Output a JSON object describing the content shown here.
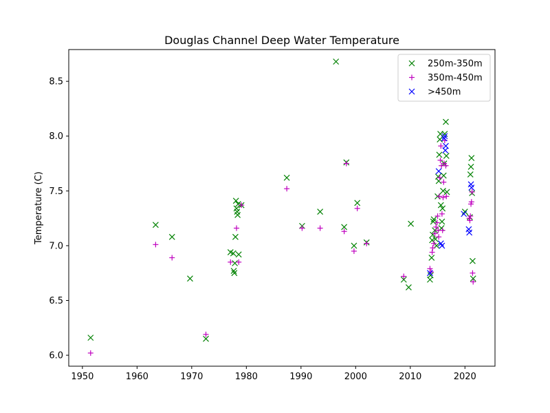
{
  "chart_data": {
    "type": "scatter",
    "title": "Douglas Channel Deep Water Temperature",
    "xlabel": "",
    "ylabel": "Temperature (C)",
    "xlim": [
      1947.5,
      2025.5
    ],
    "ylim": [
      5.9,
      8.79
    ],
    "xticks": [
      1950,
      1960,
      1970,
      1980,
      1990,
      2000,
      2010,
      2020
    ],
    "yticks": [
      6.0,
      6.5,
      7.0,
      7.5,
      8.0,
      8.5
    ],
    "ytick_labels": [
      "6.0",
      "6.5",
      "7.0",
      "7.5",
      "8.0",
      "8.5"
    ],
    "legend_position": "top-right",
    "grid": false,
    "series": [
      {
        "name": "250m-350m",
        "marker": "x",
        "color": "#008000",
        "points": [
          [
            1951.5,
            6.16
          ],
          [
            1963.4,
            7.19
          ],
          [
            1966.4,
            7.08
          ],
          [
            1969.7,
            6.7
          ],
          [
            1972.6,
            6.15
          ],
          [
            1977.1,
            6.94
          ],
          [
            1977.6,
            6.93
          ],
          [
            1977.7,
            6.77
          ],
          [
            1977.8,
            6.75
          ],
          [
            1977.9,
            6.84
          ],
          [
            1978.0,
            7.08
          ],
          [
            1978.1,
            7.41
          ],
          [
            1978.2,
            7.34
          ],
          [
            1978.3,
            7.31
          ],
          [
            1978.4,
            7.28
          ],
          [
            1978.5,
            7.38
          ],
          [
            1978.6,
            6.92
          ],
          [
            1979.1,
            7.37
          ],
          [
            1987.4,
            7.62
          ],
          [
            1990.2,
            7.18
          ],
          [
            1993.5,
            7.31
          ],
          [
            1996.4,
            8.68
          ],
          [
            1997.9,
            7.17
          ],
          [
            1998.3,
            7.76
          ],
          [
            1999.7,
            7.0
          ],
          [
            2000.3,
            7.39
          ],
          [
            2002.0,
            7.03
          ],
          [
            2008.8,
            6.69
          ],
          [
            2009.7,
            6.62
          ],
          [
            2010.1,
            7.2
          ],
          [
            2013.6,
            6.69
          ],
          [
            2013.7,
            6.73
          ],
          [
            2013.9,
            6.89
          ],
          [
            2014.0,
            7.05
          ],
          [
            2014.1,
            7.1
          ],
          [
            2014.2,
            7.22
          ],
          [
            2014.3,
            7.24
          ],
          [
            2014.5,
            7.14
          ],
          [
            2014.6,
            7.06
          ],
          [
            2014.8,
            7.0
          ],
          [
            2015.0,
            7.45
          ],
          [
            2015.1,
            7.63
          ],
          [
            2015.2,
            7.59
          ],
          [
            2015.3,
            7.83
          ],
          [
            2015.4,
            7.97
          ],
          [
            2015.5,
            8.02
          ],
          [
            2015.6,
            7.37
          ],
          [
            2015.7,
            7.16
          ],
          [
            2015.8,
            7.22
          ],
          [
            2015.9,
            7.34
          ],
          [
            2016.0,
            7.5
          ],
          [
            2016.1,
            7.64
          ],
          [
            2016.2,
            7.75
          ],
          [
            2016.3,
            8.02
          ],
          [
            2016.5,
            8.13
          ],
          [
            2016.6,
            7.82
          ],
          [
            2016.7,
            7.49
          ],
          [
            2020.0,
            7.31
          ],
          [
            2020.9,
            7.26
          ],
          [
            2021.0,
            7.65
          ],
          [
            2021.1,
            7.72
          ],
          [
            2021.2,
            7.8
          ],
          [
            2021.3,
            7.48
          ],
          [
            2021.4,
            6.86
          ],
          [
            2021.5,
            6.7
          ]
        ]
      },
      {
        "name": "350m-450m",
        "marker": "+",
        "color": "#bf00bf",
        "points": [
          [
            1951.5,
            6.02
          ],
          [
            1963.4,
            7.01
          ],
          [
            1966.4,
            6.89
          ],
          [
            1972.6,
            6.19
          ],
          [
            1977.1,
            6.85
          ],
          [
            1978.2,
            7.16
          ],
          [
            1978.6,
            6.85
          ],
          [
            1979.1,
            7.37
          ],
          [
            1987.4,
            7.52
          ],
          [
            1990.2,
            7.16
          ],
          [
            1993.5,
            7.16
          ],
          [
            1997.9,
            7.13
          ],
          [
            1998.3,
            7.75
          ],
          [
            1999.7,
            6.95
          ],
          [
            2000.3,
            7.34
          ],
          [
            2002.0,
            7.02
          ],
          [
            2008.8,
            6.72
          ],
          [
            2013.6,
            6.79
          ],
          [
            2013.8,
            6.76
          ],
          [
            2014.0,
            6.94
          ],
          [
            2014.1,
            6.98
          ],
          [
            2014.3,
            7.02
          ],
          [
            2014.5,
            7.11
          ],
          [
            2014.7,
            7.17
          ],
          [
            2014.9,
            7.21
          ],
          [
            2015.0,
            7.27
          ],
          [
            2015.1,
            7.14
          ],
          [
            2015.2,
            7.08
          ],
          [
            2015.3,
            7.45
          ],
          [
            2015.4,
            7.62
          ],
          [
            2015.5,
            7.78
          ],
          [
            2015.6,
            7.91
          ],
          [
            2015.7,
            7.73
          ],
          [
            2015.8,
            7.29
          ],
          [
            2015.9,
            7.14
          ],
          [
            2016.0,
            7.44
          ],
          [
            2016.1,
            7.58
          ],
          [
            2016.2,
            7.75
          ],
          [
            2016.3,
            7.96
          ],
          [
            2016.5,
            7.73
          ],
          [
            2016.6,
            7.45
          ],
          [
            2020.8,
            7.25
          ],
          [
            2020.9,
            7.23
          ],
          [
            2021.0,
            7.27
          ],
          [
            2021.1,
            7.38
          ],
          [
            2021.2,
            7.4
          ],
          [
            2021.3,
            7.49
          ],
          [
            2021.4,
            6.75
          ],
          [
            2021.5,
            6.67
          ]
        ]
      },
      {
        "name": ">450m",
        "marker": "x",
        "color": "#0000ff",
        "points": [
          [
            2013.6,
            6.75
          ],
          [
            2015.2,
            7.68
          ],
          [
            2015.6,
            7.02
          ],
          [
            2015.8,
            7.0
          ],
          [
            2016.2,
            7.98
          ],
          [
            2016.3,
            8.0
          ],
          [
            2016.4,
            7.87
          ],
          [
            2016.5,
            7.91
          ],
          [
            2019.8,
            7.29
          ],
          [
            2020.7,
            7.15
          ],
          [
            2020.8,
            7.12
          ],
          [
            2021.1,
            7.56
          ],
          [
            2021.2,
            7.53
          ]
        ]
      }
    ]
  }
}
